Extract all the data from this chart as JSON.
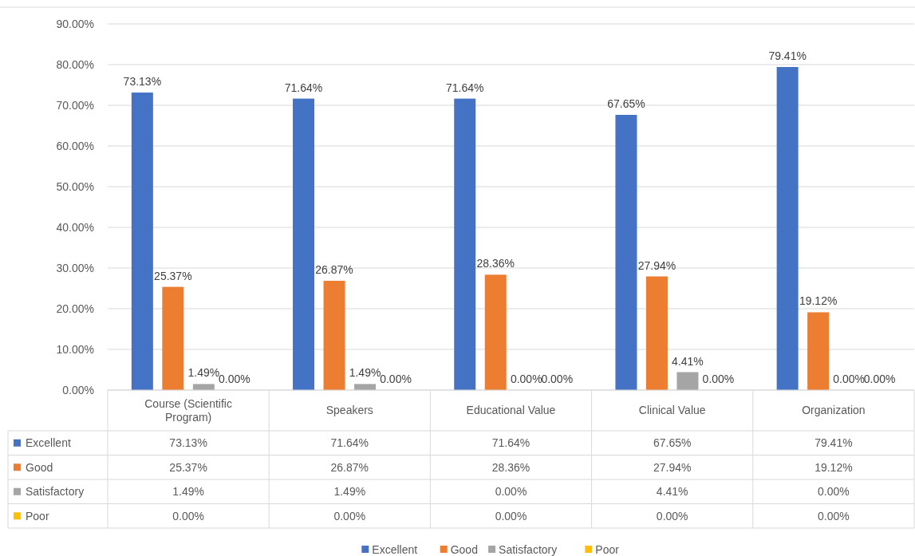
{
  "chart_data": {
    "type": "bar",
    "categories": [
      "Course (Scientific Program)",
      "Speakers",
      "Educational Value",
      "Clinical Value",
      "Organization"
    ],
    "series": [
      {
        "name": "Excellent",
        "color": "#4472c4",
        "values": [
          73.13,
          71.64,
          71.64,
          67.65,
          79.41
        ],
        "value_labels": [
          "73.13%",
          "71.64%",
          "71.64%",
          "67.65%",
          "79.41%"
        ]
      },
      {
        "name": "Good",
        "color": "#ed7d31",
        "values": [
          25.37,
          26.87,
          28.36,
          27.94,
          19.12
        ],
        "value_labels": [
          "25.37%",
          "26.87%",
          "28.36%",
          "27.94%",
          "19.12%"
        ]
      },
      {
        "name": "Satisfactory",
        "color": "#a5a5a5",
        "values": [
          1.49,
          1.49,
          0,
          4.41,
          0
        ],
        "value_labels": [
          "1.49%",
          "1.49%",
          "0.00%",
          "4.41%",
          "0.00%"
        ]
      },
      {
        "name": "Poor",
        "color": "#ffc000",
        "values": [
          0,
          0,
          0,
          0,
          0
        ],
        "value_labels": [
          "0.00%",
          "0.00%",
          "0.00%",
          "0.00%",
          "0.00%"
        ]
      }
    ],
    "ylim": [
      0,
      90
    ],
    "yticks": [
      {
        "value": 0,
        "label": "0.00%"
      },
      {
        "value": 10,
        "label": "10.00%"
      },
      {
        "value": 20,
        "label": "20.00%"
      },
      {
        "value": 30,
        "label": "30.00%"
      },
      {
        "value": 40,
        "label": "40.00%"
      },
      {
        "value": 50,
        "label": "50.00%"
      },
      {
        "value": 60,
        "label": "60.00%"
      },
      {
        "value": 70,
        "label": "70.00%"
      },
      {
        "value": 80,
        "label": "80.00%"
      },
      {
        "value": 90,
        "label": "90.00%"
      }
    ],
    "grid": "y",
    "legend": "bottom"
  }
}
